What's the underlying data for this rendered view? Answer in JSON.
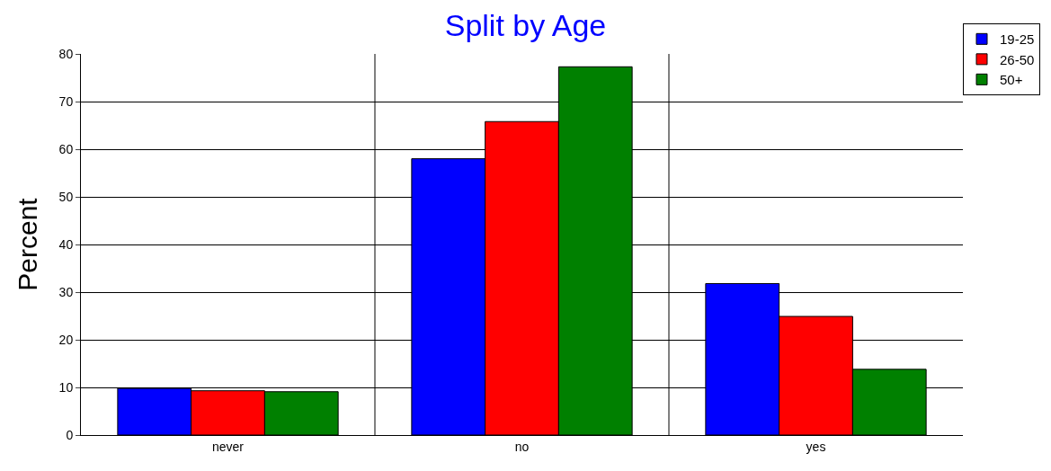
{
  "chart_data": {
    "type": "bar",
    "title": "Split by Age",
    "ylabel": "Percent",
    "categories": [
      "never",
      "no",
      "yes"
    ],
    "series": [
      {
        "name": "19-25",
        "color": "#0000ff",
        "values": [
          9.8,
          58,
          31.8
        ]
      },
      {
        "name": "26-50",
        "color": "#ff0000",
        "values": [
          9.3,
          65.8,
          24.9
        ]
      },
      {
        "name": "50+",
        "color": "#008000",
        "values": [
          9.1,
          77.3,
          13.8
        ]
      }
    ],
    "ylim": [
      0,
      80
    ],
    "yticks": [
      0,
      10,
      20,
      30,
      40,
      50,
      60,
      70,
      80
    ],
    "grid": true,
    "legend": "top right"
  }
}
